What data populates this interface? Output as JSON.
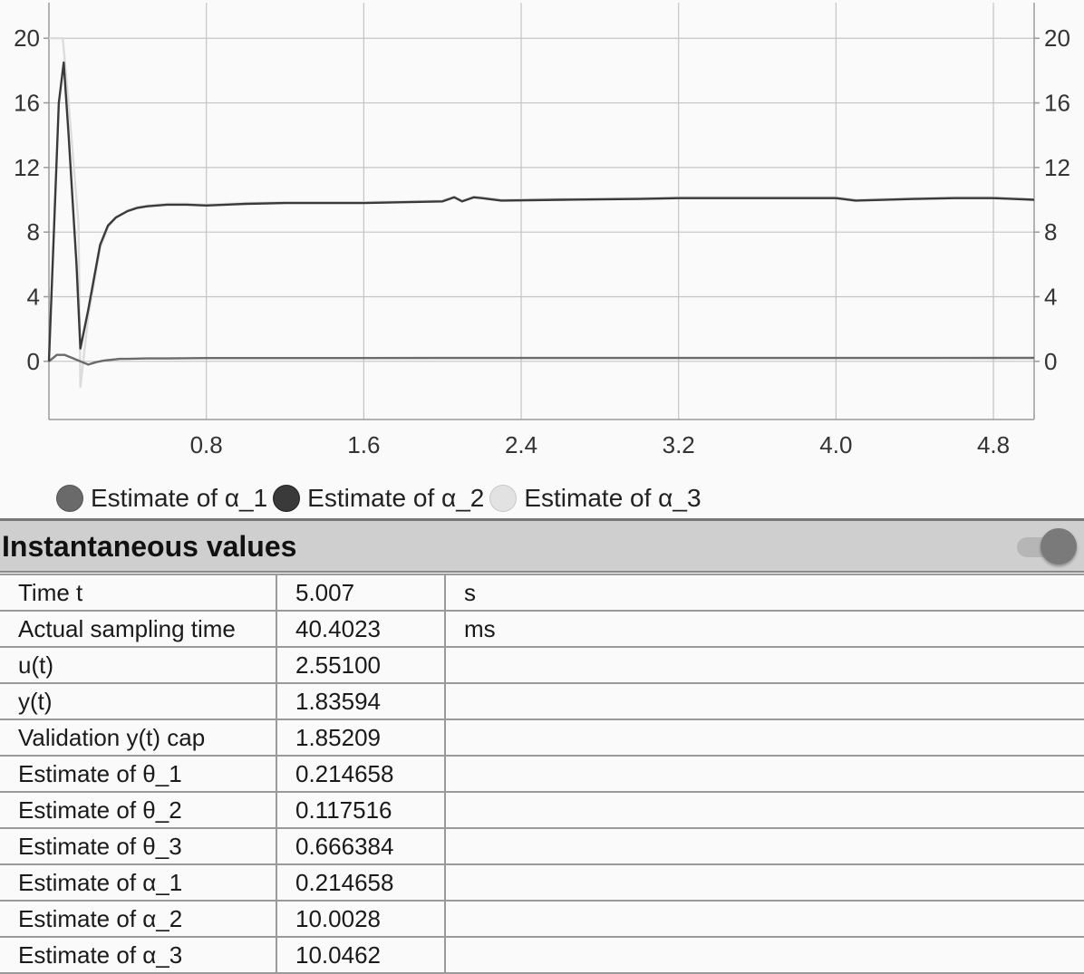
{
  "chart_data": {
    "type": "line",
    "x_ticks": [
      "0.8",
      "1.6",
      "2.4",
      "3.2",
      "4.0",
      "4.8"
    ],
    "y_ticks_left": [
      "20",
      "16",
      "12",
      "8",
      "4",
      "0"
    ],
    "y_ticks_right": [
      "20",
      "16",
      "12",
      "8",
      "4",
      "0"
    ],
    "xlim": [
      0,
      5.007
    ],
    "ylim": [
      -3.6,
      22.2
    ],
    "grid": true,
    "legend_position": "bottom",
    "series": [
      {
        "name": "Estimate of α_1",
        "color": "#6a6a6a",
        "x": [
          0,
          0.04,
          0.08,
          0.12,
          0.16,
          0.2,
          0.24,
          0.28,
          0.32,
          0.36,
          0.4,
          0.5,
          0.6,
          0.8,
          1.0,
          1.5,
          2.0,
          2.5,
          3.0,
          3.5,
          4.0,
          4.5,
          5.007
        ],
        "y": [
          0,
          0.4,
          0.4,
          0.2,
          0.0,
          -0.2,
          -0.05,
          0.05,
          0.1,
          0.15,
          0.15,
          0.18,
          0.18,
          0.2,
          0.2,
          0.2,
          0.21,
          0.21,
          0.21,
          0.21,
          0.21,
          0.21,
          0.214658
        ]
      },
      {
        "name": "Estimate of α_2",
        "color": "#3a3a3a",
        "x": [
          0,
          0.05,
          0.075,
          0.1,
          0.14,
          0.16,
          0.2,
          0.26,
          0.3,
          0.34,
          0.4,
          0.45,
          0.5,
          0.55,
          0.6,
          0.7,
          0.8,
          0.9,
          1.0,
          1.2,
          1.6,
          2.0,
          2.06,
          2.1,
          2.16,
          2.2,
          2.3,
          2.6,
          3.0,
          3.2,
          3.6,
          4.0,
          4.1,
          4.4,
          4.6,
          4.8,
          4.9,
          5.007
        ],
        "y": [
          0,
          16,
          18.5,
          14,
          6,
          0.8,
          3.2,
          7.2,
          8.4,
          8.9,
          9.3,
          9.5,
          9.6,
          9.65,
          9.7,
          9.7,
          9.65,
          9.7,
          9.75,
          9.8,
          9.8,
          9.9,
          10.15,
          9.9,
          10.15,
          10.1,
          9.95,
          10.0,
          10.05,
          10.1,
          10.1,
          10.1,
          9.95,
          10.05,
          10.1,
          10.1,
          10.05,
          10.0028
        ]
      },
      {
        "name": "Estimate of α_3",
        "color": "#dcdcdc",
        "x": [
          0,
          0.07,
          0.1,
          0.15,
          0.16,
          0.2,
          0.26,
          0.3,
          0.34,
          0.4,
          0.45,
          0.5,
          0.55,
          0.6,
          0.7,
          0.8,
          0.9,
          1.0,
          1.2,
          1.6,
          2.0,
          2.06,
          2.1,
          2.16,
          2.2,
          2.3,
          2.6,
          3.0,
          3.2,
          3.6,
          4.0,
          4.1,
          4.4,
          4.6,
          4.8,
          4.9,
          5.007
        ],
        "y": [
          20,
          20,
          16,
          8.5,
          -1.6,
          2.8,
          7.0,
          8.3,
          8.9,
          9.35,
          9.55,
          9.65,
          9.7,
          9.75,
          9.75,
          9.7,
          9.75,
          9.8,
          9.85,
          9.85,
          9.95,
          10.2,
          9.95,
          10.2,
          10.15,
          10.0,
          10.05,
          10.1,
          10.15,
          10.15,
          10.15,
          10.0,
          10.1,
          10.15,
          10.15,
          10.1,
          10.0462
        ]
      }
    ]
  },
  "legend": {
    "items": [
      {
        "label": "Estimate of α_1",
        "color": "#6a6a6a"
      },
      {
        "label": "Estimate of α_2",
        "color": "#3a3a3a"
      },
      {
        "label": "Estimate of α_3",
        "color": "#dcdcdc"
      }
    ]
  },
  "section": {
    "title": "Instantaneous values",
    "toggle_on": true
  },
  "table": {
    "rows": [
      {
        "label": "Time t",
        "value": "5.007",
        "unit": "s"
      },
      {
        "label": "Actual sampling time",
        "value": "40.4023",
        "unit": "ms"
      },
      {
        "label": "u(t)",
        "value": "2.55100",
        "unit": ""
      },
      {
        "label": "y(t)",
        "value": "1.83594",
        "unit": ""
      },
      {
        "label": "Validation y(t) cap",
        "value": "1.85209",
        "unit": ""
      },
      {
        "label": "Estimate of θ_1",
        "value": "0.214658",
        "unit": ""
      },
      {
        "label": "Estimate of θ_2",
        "value": "0.117516",
        "unit": ""
      },
      {
        "label": "Estimate of θ_3",
        "value": "0.666384",
        "unit": ""
      },
      {
        "label": "Estimate of α_1",
        "value": "0.214658",
        "unit": ""
      },
      {
        "label": "Estimate of α_2",
        "value": "10.0028",
        "unit": ""
      },
      {
        "label": "Estimate of α_3",
        "value": "10.0462",
        "unit": ""
      }
    ]
  }
}
